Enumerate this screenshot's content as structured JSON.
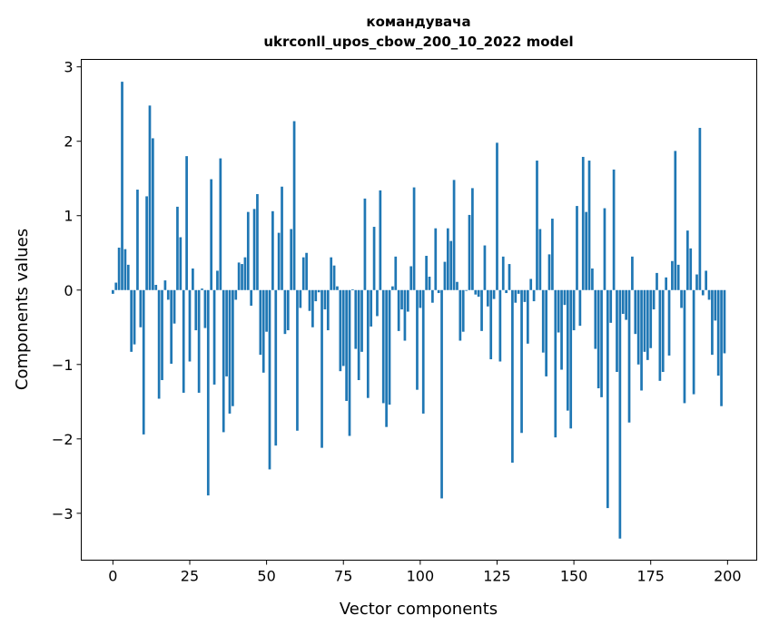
{
  "chart_data": {
    "type": "bar",
    "title": "командувача",
    "subtitle": "ukrconll_upos_cbow_200_10_2022 model",
    "xlabel": "Vector components",
    "ylabel": "Components values",
    "xlim": [
      -10.3,
      209.5
    ],
    "ylim": [
      -3.63,
      3.1
    ],
    "xticks": [
      0,
      25,
      50,
      75,
      100,
      125,
      150,
      175,
      200
    ],
    "yticks": [
      -3,
      -2,
      -1,
      0,
      1,
      2,
      3
    ],
    "ytick_labels": [
      "−3",
      "−2",
      "−1",
      "0",
      "1",
      "2",
      "3"
    ],
    "xtick_labels": [
      "0",
      "25",
      "50",
      "75",
      "100",
      "125",
      "150",
      "175",
      "200"
    ],
    "grid": false,
    "bar_color": "#1f77b4",
    "values": [
      -0.05,
      0.1,
      0.57,
      2.8,
      0.55,
      0.34,
      -0.83,
      -0.73,
      1.35,
      -0.5,
      -1.94,
      1.26,
      2.48,
      2.04,
      0.07,
      -1.46,
      -1.21,
      0.13,
      -0.13,
      -0.99,
      -0.45,
      1.12,
      0.71,
      -1.38,
      1.8,
      -0.96,
      0.29,
      -0.54,
      -1.38,
      0.02,
      -0.51,
      -2.76,
      1.49,
      -1.27,
      0.26,
      1.77,
      -1.91,
      -1.16,
      -1.66,
      -1.56,
      -0.13,
      0.37,
      0.35,
      0.44,
      1.05,
      -0.21,
      1.09,
      1.29,
      -0.87,
      -1.11,
      -0.56,
      -2.41,
      1.06,
      -2.09,
      0.77,
      1.39,
      -0.59,
      -0.54,
      0.82,
      2.27,
      -1.89,
      -0.24,
      0.44,
      0.5,
      -0.28,
      -0.5,
      -0.15,
      -0.03,
      -2.12,
      -0.26,
      -0.54,
      0.44,
      0.33,
      0.05,
      -1.09,
      -1.02,
      -1.49,
      -1.96,
      0.01,
      -0.79,
      -1.21,
      -0.83,
      1.23,
      -1.45,
      -0.49,
      0.85,
      -0.35,
      1.34,
      -1.52,
      -1.84,
      -1.54,
      0.05,
      0.45,
      -0.55,
      -0.26,
      -0.68,
      -0.29,
      0.32,
      1.38,
      -1.34,
      -0.24,
      -1.66,
      0.46,
      0.18,
      -0.17,
      0.83,
      -0.04,
      -2.8,
      0.38,
      0.83,
      0.66,
      1.48,
      0.11,
      -0.68,
      -0.56,
      -0.01,
      1.01,
      1.37,
      -0.06,
      -0.09,
      -0.55,
      0.6,
      -0.22,
      -0.93,
      -0.12,
      1.98,
      -0.96,
      0.45,
      -0.04,
      0.35,
      -2.32,
      -0.17,
      -0.05,
      -1.92,
      -0.16,
      -0.72,
      0.15,
      -0.15,
      1.74,
      0.82,
      -0.84,
      -1.16,
      0.48,
      0.96,
      -1.98,
      -0.57,
      -1.07,
      -0.2,
      -1.62,
      -1.86,
      -0.54,
      1.13,
      -0.48,
      1.79,
      1.05,
      1.74,
      0.29,
      -0.79,
      -1.32,
      -1.44,
      1.1,
      -2.93,
      -0.44,
      1.62,
      -1.1,
      -3.34,
      -0.32,
      -0.4,
      -1.78,
      0.45,
      -0.59,
      -1.0,
      -1.35,
      -0.83,
      -0.94,
      -0.78,
      -0.26,
      0.23,
      -1.22,
      -1.1,
      0.17,
      -0.88,
      0.39,
      1.87,
      0.34,
      -0.24,
      -1.52,
      0.8,
      0.56,
      -1.4,
      0.21,
      2.18,
      -0.07,
      0.26,
      -0.13,
      -0.87,
      -0.41,
      -1.15,
      -1.56,
      -0.85
    ]
  }
}
